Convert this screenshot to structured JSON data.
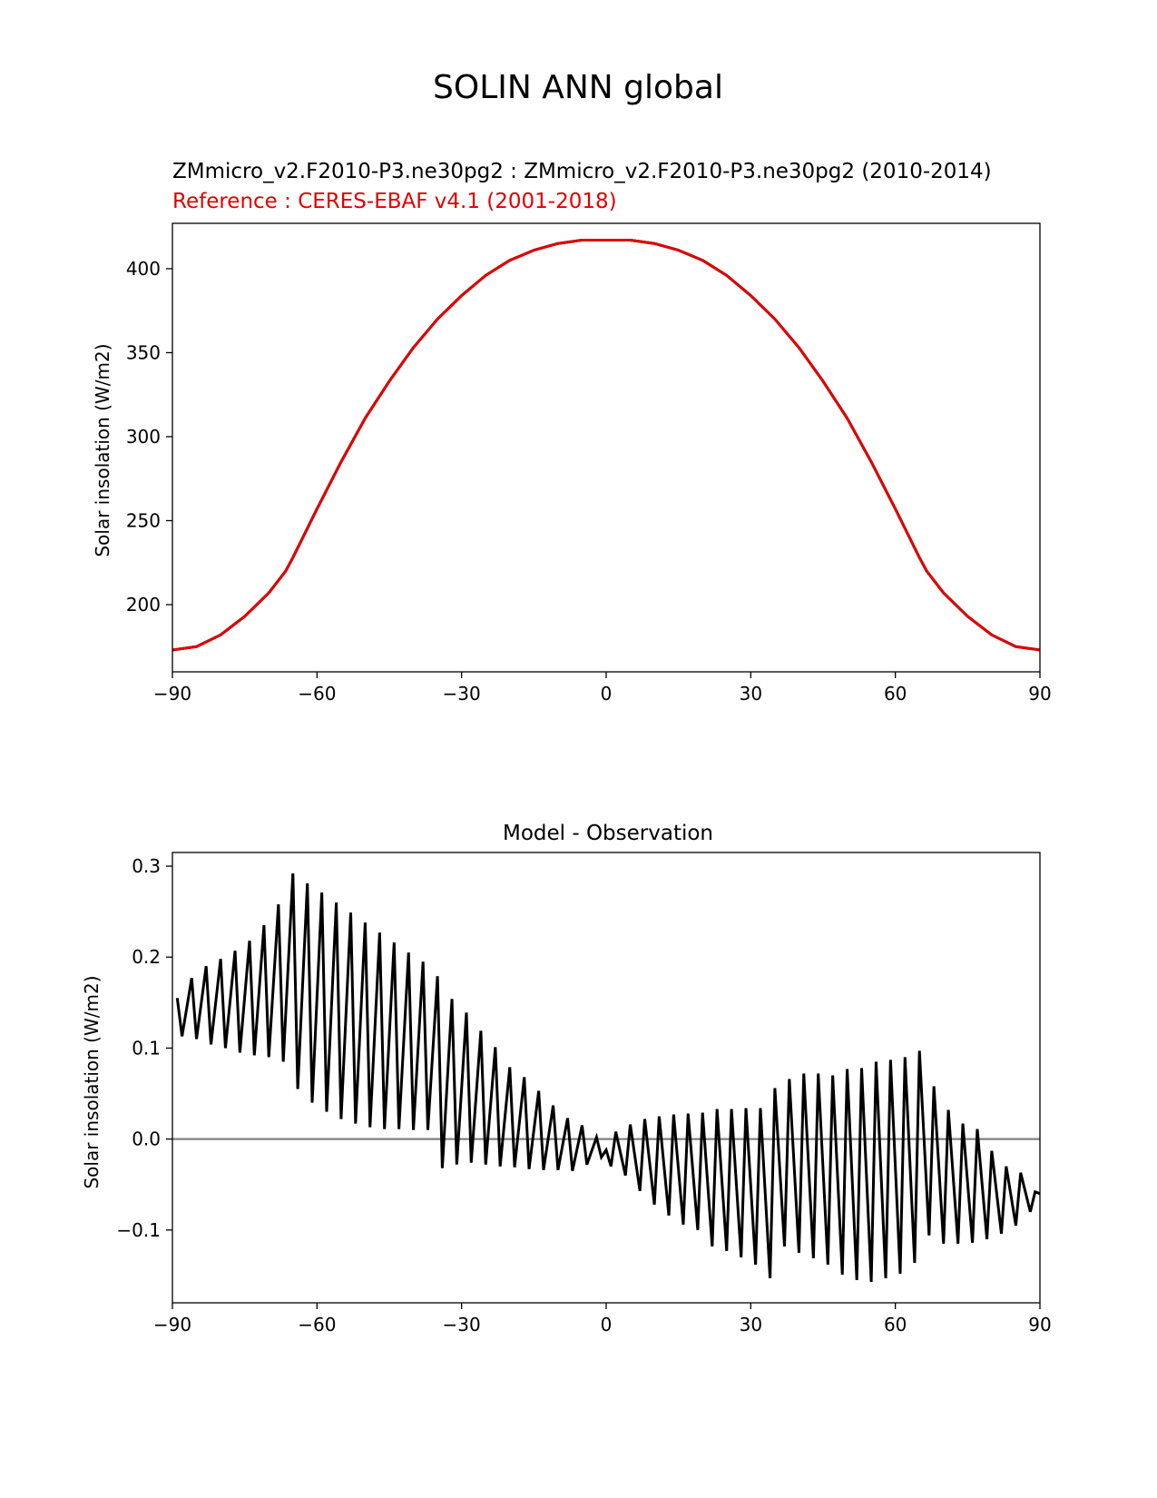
{
  "figure": {
    "title": "SOLIN ANN global"
  },
  "chart_data": [
    {
      "type": "line",
      "title_line1": "ZMmicro_v2.F2010-P3.ne30pg2 : ZMmicro_v2.F2010-P3.ne30pg2 (2010-2014)",
      "title_line2": "Reference : CERES-EBAF v4.1 (2001-2018)",
      "xlabel": "",
      "ylabel": "Solar insolation (W/m2)",
      "xlim": [
        -90,
        90
      ],
      "ylim": [
        160,
        427
      ],
      "xticks": [
        -90,
        -60,
        -30,
        0,
        30,
        60,
        90
      ],
      "xtick_labels": [
        "−90",
        "−60",
        "−30",
        "0",
        "30",
        "60",
        "90"
      ],
      "yticks": [
        200,
        250,
        300,
        350,
        400
      ],
      "yticks_labels": [
        "200",
        "250",
        "300",
        "350",
        "400"
      ],
      "grid": false,
      "colors": {
        "test": "#000000",
        "reference": "#e00000"
      },
      "series": [
        {
          "x": [
            -90,
            -85,
            -80,
            -75,
            -70,
            -66.5,
            -65,
            -60,
            -55,
            -50,
            -45,
            -40,
            -35,
            -30,
            -25,
            -20,
            -15,
            -10,
            -5,
            0,
            5,
            10,
            15,
            20,
            25,
            30,
            35,
            40,
            45,
            50,
            55,
            60,
            65,
            66.5,
            70,
            75,
            80,
            85,
            90
          ],
          "y": [
            173,
            175,
            182,
            193,
            207,
            220,
            228,
            257,
            285,
            311,
            333,
            353,
            370,
            384,
            396,
            405,
            411,
            415,
            417,
            417,
            417,
            415,
            411,
            405,
            396,
            384,
            370,
            353,
            333,
            311,
            285,
            257,
            228,
            220,
            207,
            193,
            182,
            175,
            173
          ]
        }
      ]
    },
    {
      "type": "line",
      "title": "Model - Observation",
      "xlabel": "",
      "ylabel": "Solar insolation (W/m2)",
      "xlim": [
        -90,
        90
      ],
      "ylim": [
        -0.18,
        0.315
      ],
      "xticks": [
        -90,
        -60,
        -30,
        0,
        30,
        60,
        90
      ],
      "xtick_labels": [
        "−90",
        "−60",
        "−30",
        "0",
        "30",
        "60",
        "90"
      ],
      "yticks": [
        -0.1,
        0.0,
        0.1,
        0.2,
        0.3
      ],
      "yticks_labels": [
        "−0.1",
        "0.0",
        "0.1",
        "0.2",
        "0.3"
      ],
      "zero_line": 0,
      "grid": false,
      "colors": {
        "diff": "#000000",
        "zero": "#808080"
      },
      "series": [
        {
          "upper_envelope": {
            "x": [
              -89,
              -86,
              -83,
              -80,
              -77,
              -74,
              -71,
              -68,
              -65,
              -62,
              -59,
              -56,
              -53,
              -50,
              -47,
              -44,
              -41,
              -38,
              -35,
              -32,
              -29,
              -26,
              -23,
              -20,
              -17,
              -14,
              -11,
              -8,
              -5,
              -2,
              0,
              2,
              5,
              8,
              11,
              14,
              17,
              20,
              23,
              26,
              29,
              32,
              35,
              38,
              41,
              44,
              47,
              50,
              53,
              56,
              59,
              62,
              65,
              68,
              71,
              74,
              77,
              80,
              83,
              86,
              89,
              90
            ],
            "y": [
              0.155,
              0.177,
              0.19,
              0.198,
              0.207,
              0.218,
              0.235,
              0.258,
              0.292,
              0.281,
              0.271,
              0.26,
              0.249,
              0.238,
              0.227,
              0.216,
              0.205,
              0.195,
              0.179,
              0.154,
              0.139,
              0.119,
              0.101,
              0.079,
              0.068,
              0.053,
              0.037,
              0.023,
              0.015,
              0.002,
              -0.012,
              0.008,
              0.016,
              0.022,
              0.025,
              0.027,
              0.028,
              0.029,
              0.033,
              0.033,
              0.034,
              0.034,
              0.056,
              0.066,
              0.072,
              0.072,
              0.07,
              0.077,
              0.078,
              0.085,
              0.087,
              0.09,
              0.097,
              0.058,
              0.032,
              0.017,
              0.011,
              -0.013,
              -0.03,
              -0.037,
              -0.058,
              -0.06
            ]
          },
          "lower_envelope": {
            "x": [
              -88,
              -85,
              -82,
              -79,
              -76,
              -73,
              -70,
              -67,
              -64,
              -61,
              -58,
              -55,
              -52,
              -49,
              -46,
              -43,
              -40,
              -37,
              -34,
              -31,
              -28,
              -25,
              -22,
              -19,
              -16,
              -13,
              -10,
              -7,
              -4,
              -1,
              1,
              4,
              7,
              10,
              13,
              16,
              19,
              22,
              25,
              28,
              31,
              34,
              37,
              40,
              43,
              46,
              49,
              52,
              55,
              58,
              61,
              64,
              67,
              70,
              73,
              76,
              79,
              82,
              85,
              88
            ],
            "y": [
              0.113,
              0.11,
              0.104,
              0.1,
              0.095,
              0.092,
              0.09,
              0.085,
              0.055,
              0.04,
              0.03,
              0.022,
              0.017,
              0.013,
              0.011,
              0.011,
              0.01,
              0.01,
              -0.032,
              -0.028,
              -0.026,
              -0.028,
              -0.03,
              -0.031,
              -0.033,
              -0.034,
              -0.034,
              -0.035,
              -0.028,
              -0.02,
              -0.03,
              -0.04,
              -0.057,
              -0.072,
              -0.084,
              -0.094,
              -0.1,
              -0.118,
              -0.123,
              -0.13,
              -0.138,
              -0.153,
              -0.118,
              -0.125,
              -0.131,
              -0.138,
              -0.149,
              -0.155,
              -0.157,
              -0.153,
              -0.148,
              -0.136,
              -0.106,
              -0.115,
              -0.115,
              -0.114,
              -0.11,
              -0.104,
              -0.095,
              -0.08
            ]
          }
        }
      ]
    }
  ]
}
